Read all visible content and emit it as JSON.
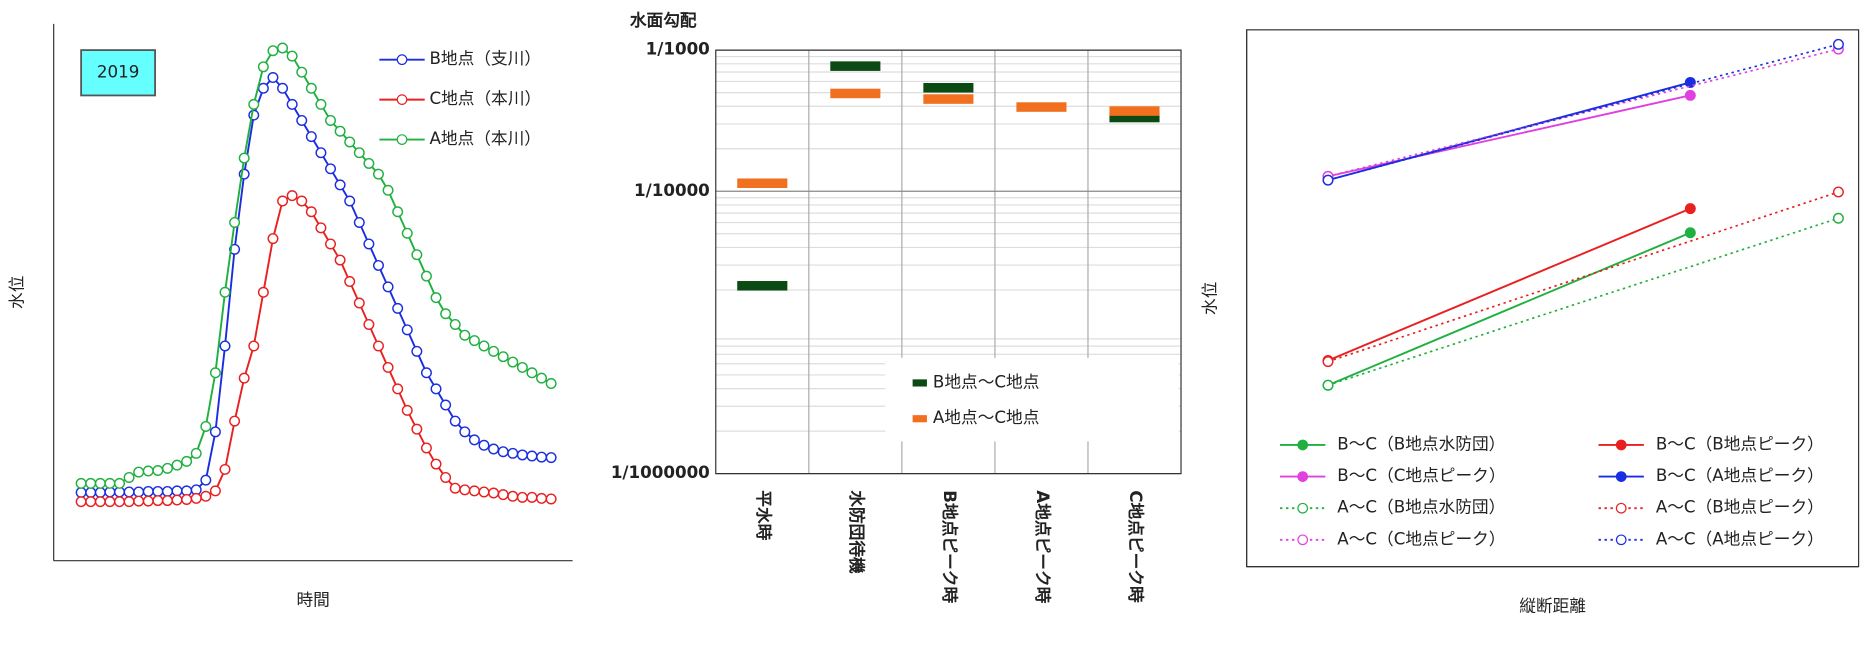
{
  "chart_data": [
    {
      "type": "line",
      "xlabel": "時間",
      "ylabel": "水位",
      "annotation": "2019",
      "ylim": [
        0,
        100
      ],
      "marker": "open",
      "series": [
        {
          "name": "B地点（支川）",
          "color": "#1a2ee0",
          "values": [
            12.7,
            12.7,
            12.7,
            12.8,
            12.8,
            12.8,
            12.8,
            12.9,
            12.9,
            12.9,
            13,
            13,
            13.2,
            15,
            24,
            40,
            58,
            72,
            83,
            88,
            90,
            88,
            85,
            82,
            79,
            76,
            73,
            70,
            67,
            63,
            59,
            55,
            51,
            47,
            43,
            39,
            35,
            32,
            29,
            26,
            24,
            22.5,
            21.5,
            20.8,
            20.3,
            20,
            19.7,
            19.5,
            19.3,
            19.2
          ]
        },
        {
          "name": "C地点（本川）",
          "color": "#e82020",
          "values": [
            11,
            11,
            11,
            11,
            11,
            11,
            11.1,
            11.1,
            11.2,
            11.2,
            11.3,
            11.4,
            11.6,
            12,
            13,
            17,
            26,
            34,
            40,
            50,
            60,
            67,
            68,
            67,
            65,
            62,
            59,
            56,
            52,
            48,
            44,
            40,
            36,
            32,
            28,
            24.5,
            21,
            18,
            15.5,
            13.5,
            13.2,
            13,
            12.8,
            12.6,
            12.3,
            12,
            11.8,
            11.8,
            11.6,
            11.5
          ]
        },
        {
          "name": "A地点（本川）",
          "color": "#20b040",
          "values": [
            14.4,
            14.4,
            14.4,
            14.4,
            14.4,
            15.5,
            16.5,
            16.7,
            16.8,
            17.2,
            17.8,
            18.5,
            20,
            25,
            35,
            50,
            63,
            75,
            85,
            92,
            95,
            95.5,
            94,
            91,
            88,
            85,
            82,
            80,
            78,
            76,
            74,
            72,
            69,
            65,
            61,
            57,
            53,
            49,
            46,
            44,
            42,
            41,
            40,
            39,
            38,
            37,
            36,
            35,
            34,
            33
          ]
        }
      ]
    },
    {
      "type": "dash",
      "title": "水面勾配",
      "log_scale": true,
      "grid": true,
      "categories": [
        "平水時",
        "水防団待機",
        "B地点ピーク時",
        "A地点ピーク時",
        "C地点ピーク時"
      ],
      "ylim": [
        1e-06,
        0.001
      ],
      "yticks": [
        {
          "value": 0.001,
          "label": "1/1000"
        },
        {
          "value": 0.0001,
          "label": "1/10000"
        },
        {
          "value": 1e-06,
          "label": "1/1000000"
        }
      ],
      "series": [
        {
          "name": "B地点～C地点",
          "color": "#0b4a12",
          "values": [
            2.14e-05,
            0.00077,
            0.000541,
            null,
            0.000333
          ]
        },
        {
          "name": "A地点～C地点",
          "color": "#f07020",
          "values": [
            0.000114,
            0.000493,
            0.00045,
            0.000395,
            0.00037
          ]
        }
      ]
    },
    {
      "type": "line",
      "xlabel": "縦断距離",
      "ylabel": "水位",
      "xlim": [
        0,
        100
      ],
      "ylim": [
        0,
        100
      ],
      "series": [
        {
          "name": "B～C（B地点水防団）",
          "color": "#20b040",
          "style": "solid",
          "marker": "filled",
          "x": [
            13.3,
            72.5
          ],
          "values": [
            33.8,
            62.2
          ]
        },
        {
          "name": "B～C（B地点ピーク）",
          "color": "#e82020",
          "style": "solid",
          "marker": "filled",
          "x": [
            13.3,
            72.5
          ],
          "values": [
            38.4,
            66.7
          ]
        },
        {
          "name": "B～C（C地点ピーク）",
          "color": "#e040e0",
          "style": "solid",
          "marker": "filled",
          "x": [
            13.3,
            72.5
          ],
          "values": [
            72.7,
            87.8
          ]
        },
        {
          "name": "B～C（A地点ピーク）",
          "color": "#1a2ee0",
          "style": "solid",
          "marker": "filled",
          "x": [
            13.3,
            72.5
          ],
          "values": [
            72,
            90.2
          ]
        },
        {
          "name": "A～C（B地点水防団）",
          "color": "#20b040",
          "style": "dotted",
          "marker": "open",
          "x": [
            13.3,
            96.7
          ],
          "values": [
            33.8,
            64.9
          ]
        },
        {
          "name": "A～C（B地点ピーク）",
          "color": "#e82020",
          "style": "dotted",
          "marker": "open",
          "x": [
            13.3,
            96.7
          ],
          "values": [
            38.2,
            69.8
          ]
        },
        {
          "name": "A～C（C地点ピーク）",
          "color": "#e040e0",
          "style": "dotted",
          "marker": "open",
          "x": [
            13.3,
            96.7
          ],
          "values": [
            72.7,
            96.4
          ]
        },
        {
          "name": "A～C（A地点ピーク）",
          "color": "#1a2ee0",
          "style": "dotted",
          "marker": "open",
          "x": [
            13.3,
            96.7
          ],
          "values": [
            72,
            97.3
          ]
        }
      ]
    }
  ]
}
